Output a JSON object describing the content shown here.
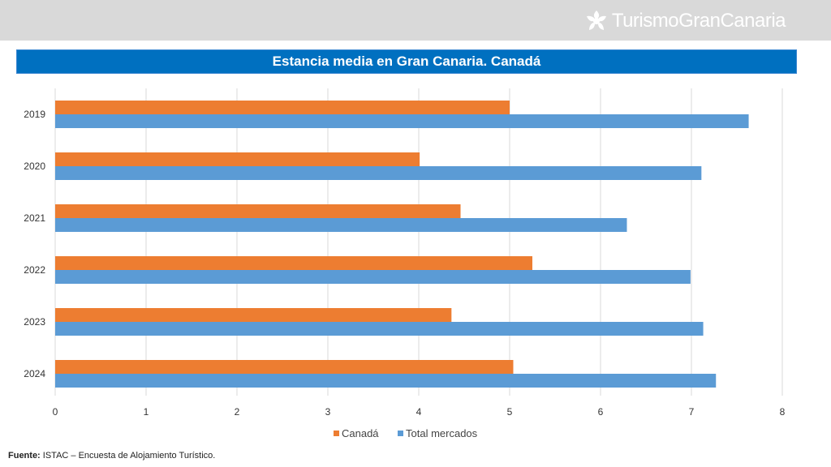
{
  "header": {
    "logo_text": "TurismoGranCanaria"
  },
  "source": {
    "label": "Fuente:",
    "text": " ISTAC – Encuesta de Alojamiento Turístico."
  },
  "colors": {
    "canada": "#ed7d31",
    "total": "#5b9bd5",
    "title_bar": "#0070c0",
    "grid": "#d9d9d9"
  },
  "chart_data": {
    "type": "bar",
    "orientation": "horizontal",
    "title": "Estancia media en Gran Canaria. Canadá",
    "categories": [
      "2019",
      "2020",
      "2021",
      "2022",
      "2023",
      "2024"
    ],
    "series": [
      {
        "name": "Canadá",
        "values": [
          5.0,
          4.01,
          4.46,
          5.25,
          4.36,
          5.04
        ]
      },
      {
        "name": "Total mercados",
        "values": [
          7.63,
          7.11,
          6.29,
          6.99,
          7.13,
          7.27
        ]
      }
    ],
    "xlim": [
      0,
      8
    ],
    "xticks": [
      0,
      1,
      2,
      3,
      4,
      5,
      6,
      7,
      8
    ],
    "grid": true,
    "legend_position": "bottom"
  }
}
